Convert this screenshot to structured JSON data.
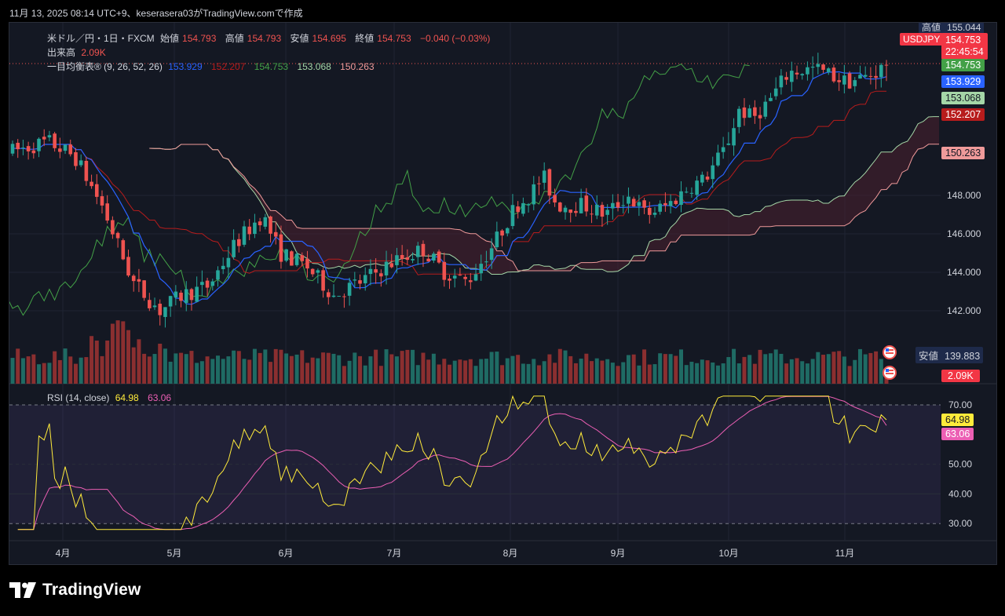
{
  "header": {
    "snapshot_text": "11月 13, 2025 08:14 UTC+9、keserasera03がTradingView.comで作成"
  },
  "legend": {
    "symbol_line": "米ドル／円・1日・FXCM",
    "open_label": "始値",
    "open": "154.793",
    "high_label": "高値",
    "high": "154.793",
    "low_label": "安値",
    "low": "154.695",
    "close_label": "終値",
    "close": "154.753",
    "change": "−0.040 (−0.03%)",
    "volume_label": "出来高",
    "volume": "2.09K",
    "ichimoku_label": "一目均衡表® (9, 26, 52, 26)",
    "ichimoku_values": [
      "153.929",
      "152.207",
      "154.753",
      "153.068",
      "150.263"
    ],
    "rsi_label": "RSI (14, close)",
    "rsi_value": "64.98",
    "rsi_ma_value": "63.06"
  },
  "price_axis": {
    "top_label_name": "高値",
    "top_label_value": "155.044",
    "ticks": [
      "148.000",
      "146.000",
      "144.000",
      "142.000"
    ],
    "symbol_badge": "USDJPY",
    "last_price": "154.753",
    "countdown": "22:45:54",
    "tag_values": [
      "154.753",
      "153.929",
      "153.068",
      "152.207",
      "150.263"
    ],
    "low_label_name": "安値",
    "low_label_value": "139.883",
    "volume_badge": "2.09K"
  },
  "rsi_axis": {
    "ticks": [
      "70.00",
      "50.00",
      "40.00",
      "30.00"
    ],
    "value": "64.98",
    "ma_value": "63.06"
  },
  "time_axis": {
    "labels": [
      "4月",
      "5月",
      "6月",
      "7月",
      "8月",
      "9月",
      "10月",
      "11月"
    ]
  },
  "footer": {
    "brand": "TradingView"
  },
  "colors": {
    "up": "#26a69a",
    "down": "#ef5350",
    "conversion": "#2962ff",
    "base": "#b71c1c",
    "lagging": "#43a047",
    "span_a": "#a5d6a7",
    "span_b": "#ef9a9a",
    "rsi": "#ffeb3b",
    "rsi_ma": "#ec5fb4"
  },
  "chart_data": {
    "type": "candlestick",
    "symbol": "USDJPY",
    "interval": "1日",
    "price_range": [
      139.883,
      155.044
    ],
    "price_ticks": [
      148.0,
      146.0,
      144.0,
      142.0
    ],
    "x_labels": [
      "4月",
      "5月",
      "6月",
      "7月",
      "8月",
      "9月",
      "10月",
      "11月"
    ],
    "last_ohlc": {
      "open": 154.793,
      "high": 154.793,
      "low": 154.695,
      "close": 154.753,
      "change": -0.04,
      "change_pct": -0.03
    },
    "close_path": [
      [
        "3月下旬",
        150.0
      ],
      [
        "4月",
        147.0
      ],
      [
        "4月中旬",
        142.5
      ],
      [
        "4月下旬",
        141.5
      ],
      [
        "5月上旬",
        143.5
      ],
      [
        "5月中旬",
        147.0
      ],
      [
        "5月下旬",
        143.5
      ],
      [
        "6月",
        143.5
      ],
      [
        "6月中旬",
        144.5
      ],
      [
        "6月下旬",
        145.5
      ],
      [
        "7月",
        144.0
      ],
      [
        "7月中旬",
        147.5
      ],
      [
        "7月下旬",
        148.5
      ],
      [
        "8月",
        147.0
      ],
      [
        "8月中旬",
        147.5
      ],
      [
        "9月",
        147.5
      ],
      [
        "9月中旬",
        147.5
      ],
      [
        "10月",
        148.0
      ],
      [
        "10月中旬",
        152.0
      ],
      [
        "10月下旬",
        152.5
      ],
      [
        "11月",
        153.5
      ],
      [
        "11月中旬",
        154.753
      ]
    ],
    "ichimoku": {
      "params": [
        9,
        26,
        52,
        26
      ],
      "conversion": 153.929,
      "base": 152.207,
      "lagging": 154.753,
      "span_a": 153.068,
      "span_b": 150.263
    },
    "volume_last": "2.09K",
    "rsi": {
      "period": 14,
      "value": 64.98,
      "ma": 63.06,
      "ticks": [
        70,
        50,
        40,
        30
      ],
      "band": [
        30,
        70
      ]
    }
  }
}
